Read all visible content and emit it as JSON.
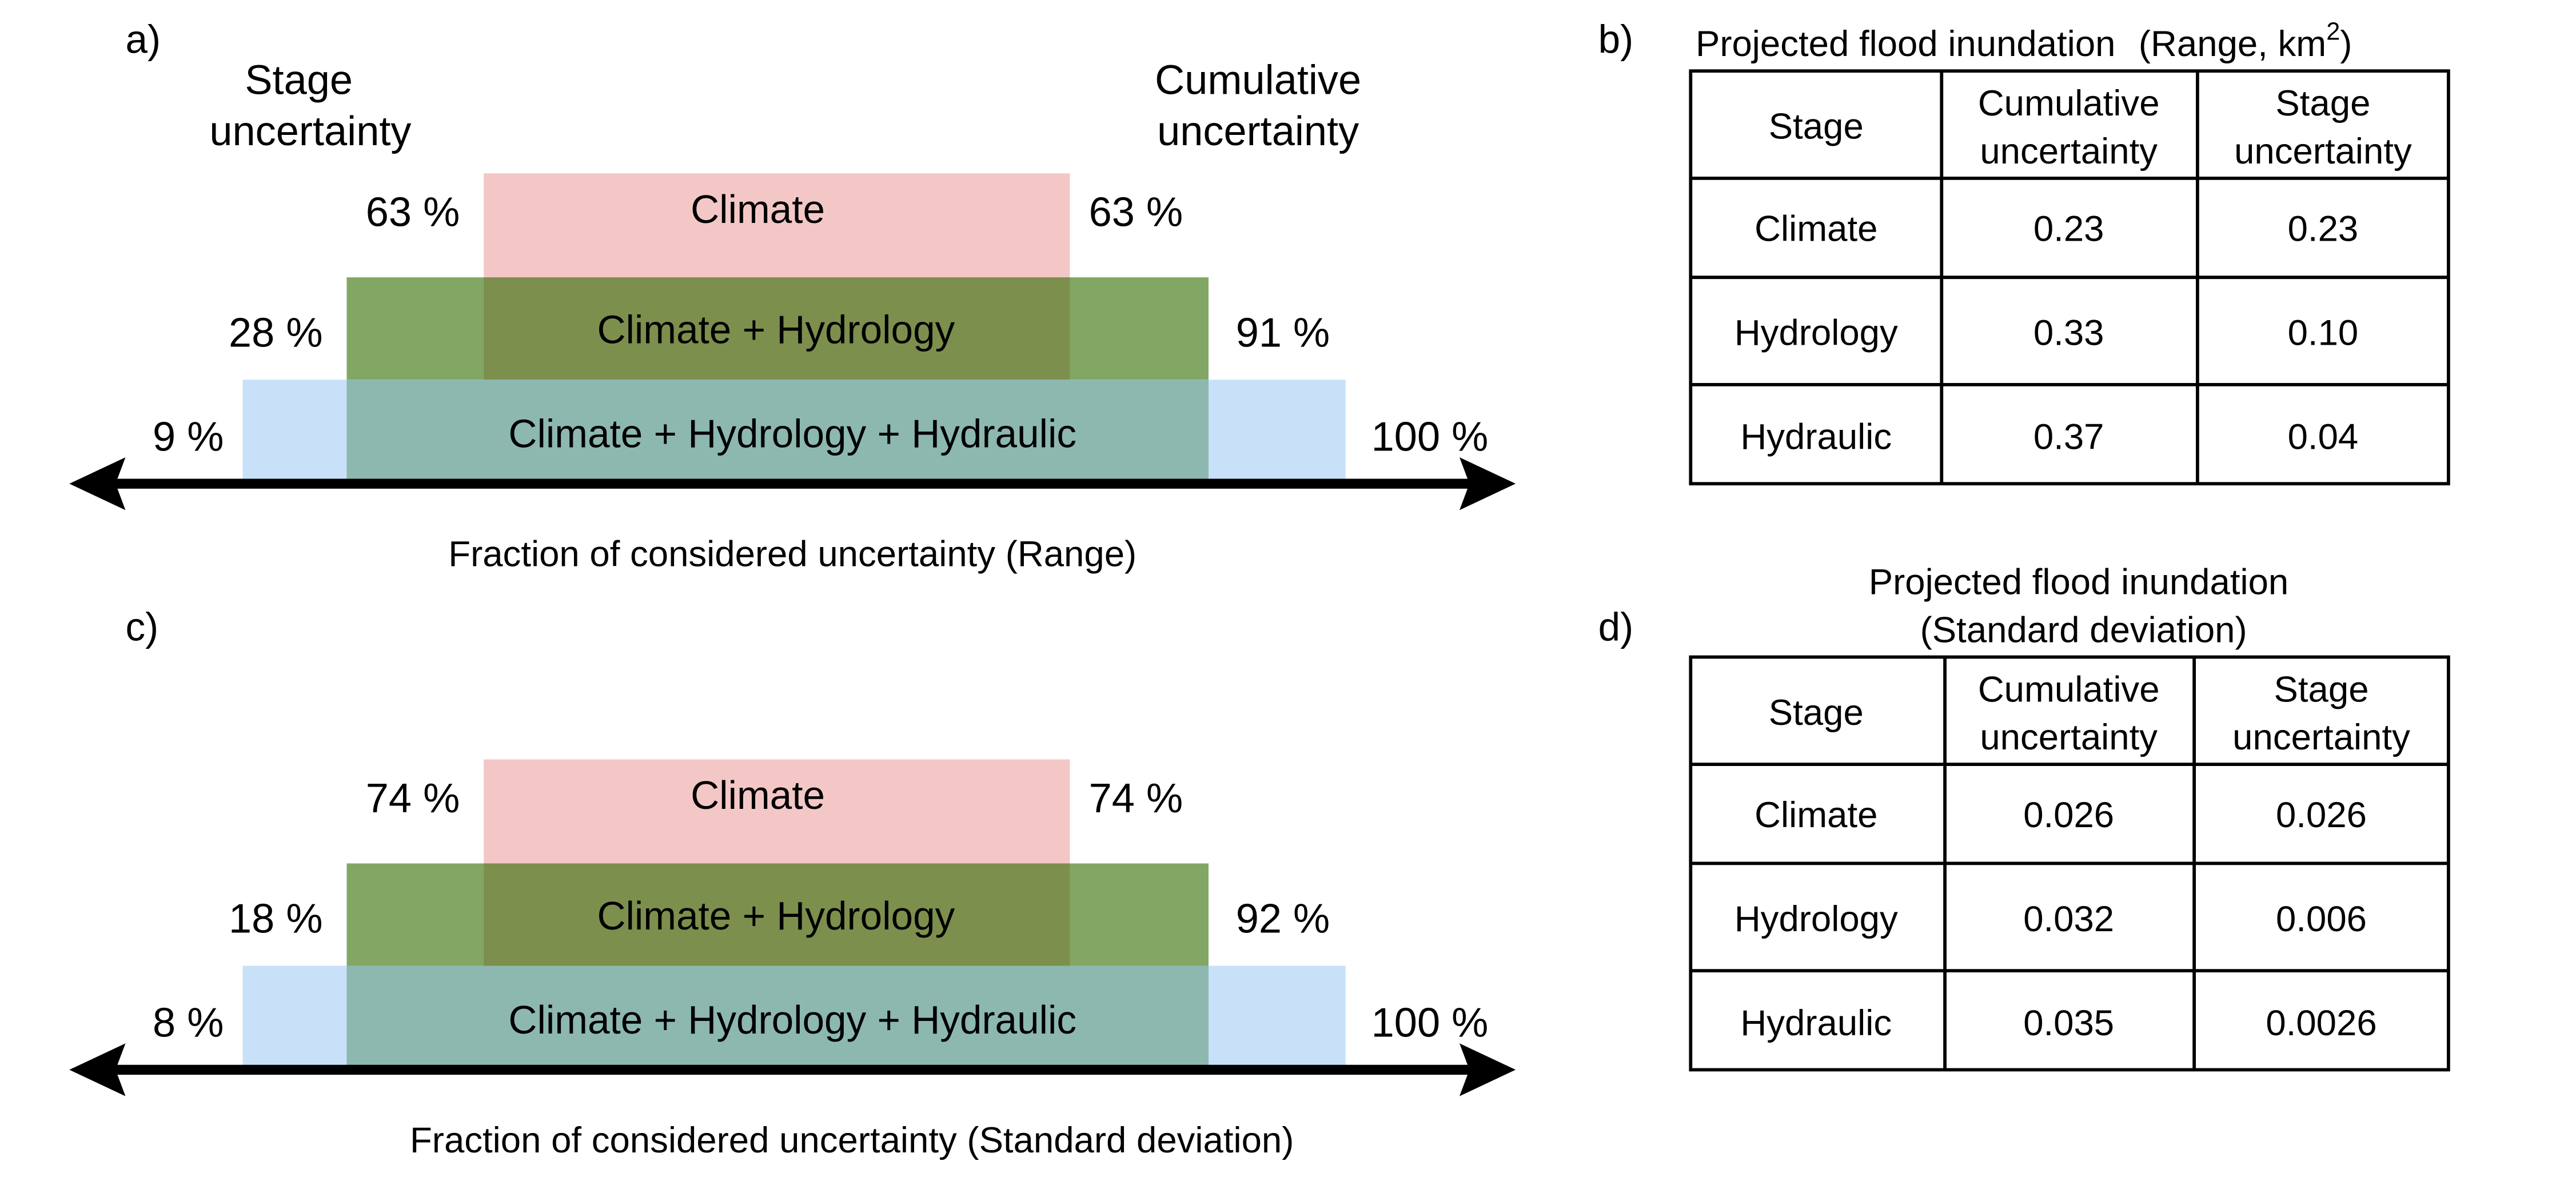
{
  "panels": {
    "a": {
      "label": "a)",
      "left_heading_line1": "Stage",
      "left_heading_line2": "uncertainty",
      "right_heading_line1": "Cumulative",
      "right_heading_line2": "uncertainty",
      "bands": [
        {
          "name": "climate",
          "label": "Climate",
          "stage_pct": "63 %",
          "cumulative_pct": "63 %"
        },
        {
          "name": "climate-hydrology",
          "label": "Climate + Hydrology",
          "stage_pct": "28 %",
          "cumulative_pct": "91 %"
        },
        {
          "name": "climate-hydrology-hydraulic",
          "label": "Climate + Hydrology + Hydraulic",
          "stage_pct": "9 %",
          "cumulative_pct": "100 %"
        }
      ],
      "axis_caption": "Fraction of considered uncertainty (Range)"
    },
    "c": {
      "label": "c)",
      "bands": [
        {
          "name": "climate",
          "label": "Climate",
          "stage_pct": "74 %",
          "cumulative_pct": "74 %"
        },
        {
          "name": "climate-hydrology",
          "label": "Climate + Hydrology",
          "stage_pct": "18 %",
          "cumulative_pct": "92 %"
        },
        {
          "name": "climate-hydrology-hydraulic",
          "label": "Climate + Hydrology + Hydraulic",
          "stage_pct": "8 %",
          "cumulative_pct": "100 %"
        }
      ],
      "axis_caption": "Fraction of considered uncertainty (Standard deviation)"
    },
    "b": {
      "label": "b)",
      "title_main": "Projected flood inundation",
      "title_unit": "(Range, km",
      "title_sup": "2",
      "title_close": ")",
      "headers": {
        "stage": "Stage",
        "cumulative_line1": "Cumulative",
        "cumulative_line2": "uncertainty",
        "stage_unc_line1": "Stage",
        "stage_unc_line2": "uncertainty"
      },
      "rows": [
        {
          "stage": "Climate",
          "cumulative": "0.23",
          "stage_uncertainty": "0.23"
        },
        {
          "stage": "Hydrology",
          "cumulative": "0.33",
          "stage_uncertainty": "0.10"
        },
        {
          "stage": "Hydraulic",
          "cumulative": "0.37",
          "stage_uncertainty": "0.04"
        }
      ]
    },
    "d": {
      "label": "d)",
      "title_line1": "Projected flood inundation",
      "title_line2": "(Standard deviation)",
      "headers": {
        "stage": "Stage",
        "cumulative_line1": "Cumulative",
        "cumulative_line2": "uncertainty",
        "stage_unc_line1": "Stage",
        "stage_unc_line2": "uncertainty"
      },
      "rows": [
        {
          "stage": "Climate",
          "cumulative": "0.026",
          "stage_uncertainty": "0.026"
        },
        {
          "stage": "Hydrology",
          "cumulative": "0.032",
          "stage_uncertainty": "0.006"
        },
        {
          "stage": "Hydraulic",
          "cumulative": "0.035",
          "stage_uncertainty": "0.0026"
        }
      ]
    }
  },
  "colors": {
    "climate": "#f4c7c7",
    "hydrology": "#82a765",
    "hydraulic": "#c8e1f8",
    "hydrology_over_climate": "#7d8f4c",
    "hydraulic_over_climate_hydrology": "#8cb8b0"
  }
}
